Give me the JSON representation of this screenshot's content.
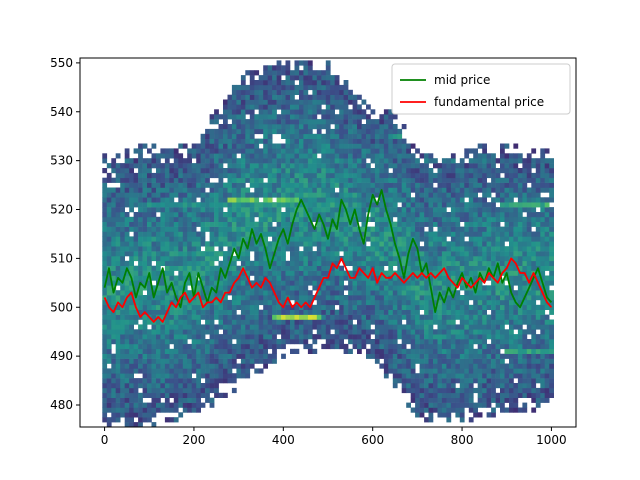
{
  "chart_data": {
    "type": "line",
    "title": "",
    "xlabel": "",
    "ylabel": "",
    "xlim": [
      -55,
      1055
    ],
    "ylim": [
      475.5,
      551
    ],
    "x_ticks": [
      0,
      200,
      400,
      600,
      800,
      1000
    ],
    "y_ticks": [
      480,
      490,
      500,
      510,
      520,
      530,
      540,
      550
    ],
    "legend": {
      "placement": "top-right"
    },
    "grid": false,
    "series": [
      {
        "name": "mid price",
        "color": "#008000",
        "points": [
          [
            0,
            504
          ],
          [
            10,
            508
          ],
          [
            20,
            503
          ],
          [
            30,
            506
          ],
          [
            40,
            505
          ],
          [
            50,
            508
          ],
          [
            60,
            506
          ],
          [
            70,
            502
          ],
          [
            80,
            505
          ],
          [
            90,
            504
          ],
          [
            100,
            507
          ],
          [
            110,
            502
          ],
          [
            120,
            505
          ],
          [
            130,
            508
          ],
          [
            140,
            503
          ],
          [
            150,
            505
          ],
          [
            160,
            502
          ],
          [
            170,
            500
          ],
          [
            180,
            505
          ],
          [
            190,
            507
          ],
          [
            200,
            502
          ],
          [
            210,
            507
          ],
          [
            220,
            504
          ],
          [
            230,
            501
          ],
          [
            240,
            504
          ],
          [
            250,
            503
          ],
          [
            260,
            508
          ],
          [
            270,
            506
          ],
          [
            280,
            509
          ],
          [
            290,
            512
          ],
          [
            300,
            510
          ],
          [
            310,
            514
          ],
          [
            320,
            512
          ],
          [
            330,
            516
          ],
          [
            340,
            513
          ],
          [
            350,
            515
          ],
          [
            360,
            512
          ],
          [
            370,
            508
          ],
          [
            380,
            511
          ],
          [
            390,
            514
          ],
          [
            400,
            516
          ],
          [
            410,
            513
          ],
          [
            420,
            517
          ],
          [
            430,
            520
          ],
          [
            440,
            522
          ],
          [
            450,
            520
          ],
          [
            460,
            518
          ],
          [
            470,
            516
          ],
          [
            480,
            519
          ],
          [
            490,
            517
          ],
          [
            500,
            514
          ],
          [
            510,
            518
          ],
          [
            520,
            516
          ],
          [
            530,
            522
          ],
          [
            540,
            520
          ],
          [
            550,
            517
          ],
          [
            560,
            520
          ],
          [
            570,
            516
          ],
          [
            580,
            513
          ],
          [
            590,
            519
          ],
          [
            600,
            523
          ],
          [
            610,
            521
          ],
          [
            620,
            524
          ],
          [
            630,
            520
          ],
          [
            640,
            517
          ],
          [
            650,
            513
          ],
          [
            660,
            510
          ],
          [
            670,
            506
          ],
          [
            680,
            511
          ],
          [
            690,
            514
          ],
          [
            700,
            512
          ],
          [
            710,
            507
          ],
          [
            720,
            509
          ],
          [
            730,
            504
          ],
          [
            740,
            499
          ],
          [
            750,
            503
          ],
          [
            760,
            501
          ],
          [
            770,
            504
          ],
          [
            780,
            502
          ],
          [
            790,
            505
          ],
          [
            800,
            507
          ],
          [
            810,
            504
          ],
          [
            820,
            506
          ],
          [
            830,
            503
          ],
          [
            840,
            507
          ],
          [
            850,
            505
          ],
          [
            860,
            508
          ],
          [
            870,
            506
          ],
          [
            880,
            509
          ],
          [
            890,
            505
          ],
          [
            900,
            507
          ],
          [
            910,
            503
          ],
          [
            920,
            501
          ],
          [
            930,
            500
          ],
          [
            940,
            502
          ],
          [
            950,
            504
          ],
          [
            960,
            506
          ],
          [
            970,
            508
          ],
          [
            980,
            505
          ],
          [
            990,
            502
          ],
          [
            1000,
            501
          ]
        ]
      },
      {
        "name": "fundamental price",
        "color": "#ff0000",
        "points": [
          [
            0,
            502
          ],
          [
            10,
            500
          ],
          [
            20,
            499
          ],
          [
            30,
            501
          ],
          [
            40,
            500
          ],
          [
            50,
            502
          ],
          [
            60,
            503
          ],
          [
            70,
            500
          ],
          [
            80,
            498
          ],
          [
            90,
            499
          ],
          [
            100,
            498
          ],
          [
            110,
            497
          ],
          [
            120,
            498
          ],
          [
            130,
            497
          ],
          [
            140,
            499
          ],
          [
            150,
            501
          ],
          [
            160,
            500
          ],
          [
            170,
            502
          ],
          [
            180,
            503
          ],
          [
            190,
            501
          ],
          [
            200,
            502
          ],
          [
            210,
            503
          ],
          [
            220,
            500
          ],
          [
            230,
            501
          ],
          [
            240,
            501
          ],
          [
            250,
            502
          ],
          [
            260,
            501
          ],
          [
            270,
            503
          ],
          [
            280,
            503
          ],
          [
            290,
            505
          ],
          [
            300,
            506
          ],
          [
            310,
            508
          ],
          [
            320,
            506
          ],
          [
            330,
            504
          ],
          [
            340,
            505
          ],
          [
            350,
            504
          ],
          [
            360,
            506
          ],
          [
            370,
            505
          ],
          [
            380,
            503
          ],
          [
            390,
            501
          ],
          [
            400,
            500
          ],
          [
            410,
            502
          ],
          [
            420,
            500
          ],
          [
            430,
            501
          ],
          [
            440,
            500
          ],
          [
            450,
            501
          ],
          [
            460,
            500
          ],
          [
            470,
            502
          ],
          [
            480,
            504
          ],
          [
            490,
            506
          ],
          [
            500,
            506
          ],
          [
            510,
            509
          ],
          [
            520,
            508
          ],
          [
            530,
            510
          ],
          [
            540,
            508
          ],
          [
            550,
            506
          ],
          [
            560,
            506
          ],
          [
            570,
            508
          ],
          [
            580,
            507
          ],
          [
            590,
            506
          ],
          [
            600,
            508
          ],
          [
            610,
            505
          ],
          [
            620,
            507
          ],
          [
            630,
            506
          ],
          [
            640,
            506
          ],
          [
            650,
            507
          ],
          [
            660,
            506
          ],
          [
            670,
            505
          ],
          [
            680,
            506
          ],
          [
            690,
            507
          ],
          [
            700,
            506
          ],
          [
            710,
            507
          ],
          [
            720,
            506
          ],
          [
            730,
            507
          ],
          [
            740,
            506
          ],
          [
            750,
            507
          ],
          [
            760,
            508
          ],
          [
            770,
            506
          ],
          [
            780,
            505
          ],
          [
            790,
            504
          ],
          [
            800,
            506
          ],
          [
            810,
            505
          ],
          [
            820,
            504
          ],
          [
            830,
            505
          ],
          [
            840,
            506
          ],
          [
            850,
            505
          ],
          [
            860,
            507
          ],
          [
            870,
            506
          ],
          [
            880,
            505
          ],
          [
            890,
            507
          ],
          [
            900,
            508
          ],
          [
            910,
            510
          ],
          [
            920,
            509
          ],
          [
            930,
            507
          ],
          [
            940,
            507
          ],
          [
            950,
            505
          ],
          [
            960,
            507
          ],
          [
            970,
            505
          ],
          [
            980,
            503
          ],
          [
            990,
            501
          ],
          [
            1000,
            500
          ]
        ]
      }
    ],
    "heatmap": {
      "description_type": "order book depth heatmap",
      "colormap": [
        "#440154",
        "#3b528b",
        "#21918c",
        "#5ec962",
        "#fde725"
      ],
      "envelope": [
        [
          0,
          476,
          531
        ],
        [
          100,
          476,
          533
        ],
        [
          200,
          478,
          533
        ],
        [
          300,
          484,
          547
        ],
        [
          400,
          490,
          550
        ],
        [
          500,
          492,
          550
        ],
        [
          600,
          490,
          540
        ],
        [
          650,
          484,
          540
        ],
        [
          700,
          478,
          532
        ],
        [
          750,
          476,
          530
        ],
        [
          850,
          478,
          533
        ],
        [
          1000,
          480,
          532
        ]
      ],
      "bright_bands": [
        [
          280,
          430,
          522,
          0.85
        ],
        [
          380,
          480,
          498,
          0.95
        ],
        [
          80,
          480,
          521,
          0.55
        ],
        [
          640,
          730,
          535,
          0.6
        ],
        [
          700,
          860,
          530,
          0.45
        ],
        [
          620,
          760,
          507,
          0.6
        ],
        [
          880,
          1000,
          521,
          0.7
        ],
        [
          900,
          1000,
          491,
          0.65
        ],
        [
          880,
          1000,
          512,
          0.55
        ]
      ]
    }
  }
}
